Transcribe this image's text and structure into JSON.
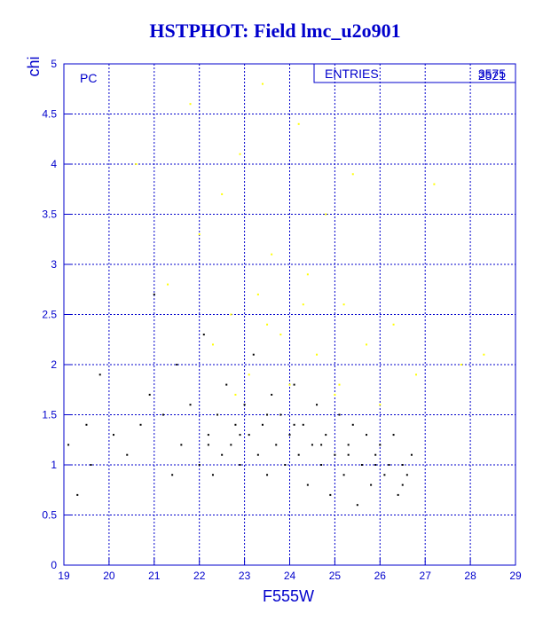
{
  "chart_data": {
    "type": "scatter",
    "title": "HSTPHOT: Field lmc_u2o901",
    "xlabel": "F555W",
    "ylabel": "chi",
    "annotation": "PC",
    "stats": {
      "label": "ENTRIES",
      "values": [
        3575,
        2521
      ]
    },
    "xlim": [
      19,
      29
    ],
    "ylim": [
      0,
      5
    ],
    "xticks": [
      19,
      20,
      21,
      22,
      23,
      24,
      25,
      26,
      27,
      28,
      29
    ],
    "yticks": [
      0,
      0.5,
      1,
      1.5,
      2,
      2.5,
      3,
      3.5,
      4,
      4.5,
      5
    ],
    "grid": true,
    "series": [
      {
        "color": "#000000",
        "x": [
          19.1,
          19.3,
          19.6,
          19.8,
          20.1,
          20.4,
          20.7,
          21.0,
          21.2,
          21.4,
          21.6,
          21.8,
          22.0,
          22.1,
          22.2,
          22.3,
          22.4,
          22.5,
          22.6,
          22.7,
          22.8,
          22.9,
          23.0,
          23.1,
          23.2,
          23.3,
          23.4,
          23.5,
          23.6,
          23.7,
          23.8,
          23.9,
          24.0,
          24.1,
          24.2,
          24.3,
          24.4,
          24.5,
          24.6,
          24.7,
          24.8,
          24.9,
          25.0,
          25.1,
          25.2,
          25.3,
          25.4,
          25.5,
          25.6,
          25.7,
          25.8,
          25.9,
          26.0,
          26.1,
          26.2,
          26.3,
          26.4,
          26.5,
          26.6,
          26.7,
          22.2,
          22.9,
          23.5,
          24.1,
          24.7,
          25.3,
          25.9,
          26.5,
          21.5,
          20.9,
          19.5
        ],
        "values": [
          1.2,
          0.7,
          1.0,
          1.9,
          1.3,
          1.1,
          1.4,
          2.7,
          1.5,
          0.9,
          1.2,
          1.6,
          1.0,
          2.3,
          1.3,
          0.9,
          1.5,
          1.1,
          1.8,
          1.2,
          1.4,
          1.0,
          1.6,
          1.3,
          2.1,
          1.1,
          1.4,
          0.9,
          1.7,
          1.2,
          1.5,
          1.0,
          1.3,
          1.8,
          1.1,
          1.4,
          0.8,
          1.2,
          1.6,
          1.0,
          1.3,
          0.7,
          1.1,
          1.5,
          0.9,
          1.2,
          1.4,
          0.6,
          1.0,
          1.3,
          0.8,
          1.1,
          1.2,
          0.9,
          1.0,
          1.3,
          0.7,
          0.8,
          0.9,
          1.1,
          1.2,
          1.3,
          1.5,
          1.4,
          1.2,
          1.1,
          1.0,
          1.0,
          2.0,
          1.7,
          1.4
        ]
      },
      {
        "color": "#ffff00",
        "x": [
          20.6,
          21.3,
          21.8,
          22.0,
          22.3,
          22.5,
          22.7,
          22.9,
          23.1,
          23.3,
          23.4,
          23.6,
          23.8,
          24.0,
          24.2,
          24.4,
          24.6,
          24.8,
          25.0,
          25.2,
          25.4,
          25.7,
          26.0,
          26.3,
          26.8,
          27.2,
          27.8,
          28.3,
          23.5,
          24.3,
          25.1,
          22.8
        ],
        "values": [
          4.0,
          2.8,
          4.6,
          3.3,
          2.2,
          3.7,
          2.5,
          4.1,
          1.9,
          2.7,
          4.8,
          3.1,
          2.3,
          1.8,
          4.4,
          2.9,
          2.1,
          3.5,
          1.7,
          2.6,
          3.9,
          2.2,
          1.6,
          2.4,
          1.9,
          3.8,
          2.0,
          2.1,
          2.4,
          2.6,
          1.8,
          1.7
        ]
      }
    ]
  }
}
